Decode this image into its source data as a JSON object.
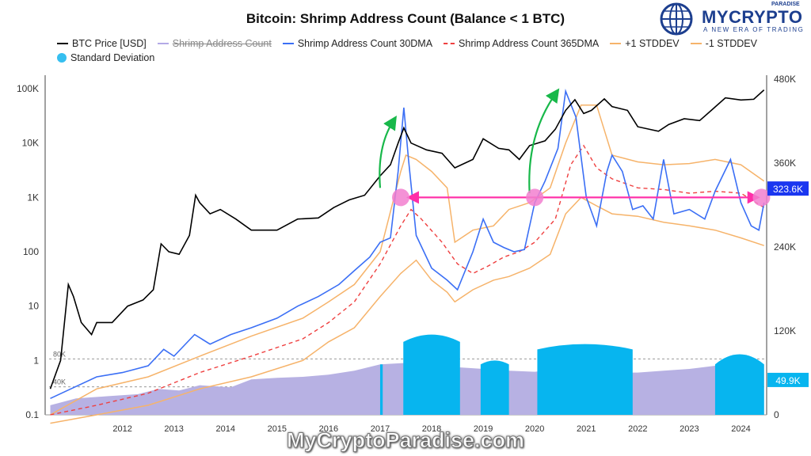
{
  "logo": {
    "brand": "MYCRYPTO",
    "paradise": "PARADISE",
    "tagline": "A NEW ERA OF TRADING"
  },
  "watermark": "MyCryptoParadise.com",
  "colors": {
    "price": "#000000",
    "shrimp_raw": "#b3a9e6",
    "dma30": "#3b6ff5",
    "dma365": "#ef4040",
    "stddev": "#f6b36a",
    "stdev_fill": "#07b5ef",
    "purple_fill": "#b7b1e3",
    "accent": "#ff2fa8",
    "arrow": "#18b84a",
    "highlight_tag": "#1a36f0",
    "value_tag": "#07b5ef"
  },
  "chart_data": {
    "type": "line",
    "title": "Bitcoin: Shrimp Address Count (Balance < 1 BTC)",
    "legend_position": "top-left",
    "legend": [
      {
        "name": "BTC Price [USD]",
        "style": "solid",
        "color": "#000000",
        "struck": false
      },
      {
        "name": "Shrimp Address Count",
        "style": "solid",
        "color": "#b3a9e6",
        "struck": true
      },
      {
        "name": "Shrimp Address Count 30DMA",
        "style": "solid",
        "color": "#3b6ff5",
        "struck": false
      },
      {
        "name": "Shrimp Address Count 365DMA",
        "style": "dashed",
        "color": "#ef4040",
        "struck": false
      },
      {
        "name": "+1 STDDEV",
        "style": "solid",
        "color": "#f6b36a",
        "struck": false
      },
      {
        "name": "-1 STDDEV",
        "style": "solid",
        "color": "#f6b36a",
        "struck": false
      },
      {
        "name": "Standard Deviation",
        "style": "dot",
        "color": "#36bff0",
        "struck": false
      }
    ],
    "x_axis": {
      "range": [
        2011.0,
        2025.0
      ],
      "ticks": [
        "2012",
        "2013",
        "2014",
        "2015",
        "2016",
        "2017",
        "2018",
        "2019",
        "2020",
        "2021",
        "2022",
        "2023",
        "2024"
      ]
    },
    "y_left": {
      "scale": "log",
      "range": [
        0.1,
        150000
      ],
      "ticks": [
        "0.1",
        "1",
        "10",
        "100",
        "1K",
        "10K",
        "100K"
      ]
    },
    "y_right": {
      "scale": "linear",
      "range": [
        0,
        480000
      ],
      "ticks": [
        "0",
        "120K",
        "240K",
        "360K",
        "480K"
      ]
    },
    "y_left_lower": {
      "ticks": [
        "80K",
        "40K"
      ]
    },
    "value_tags": [
      {
        "label": "323.6K",
        "y": 323600
      },
      {
        "label": "49.9K",
        "y": 49900
      }
    ],
    "btc_price": [
      [
        2011.1,
        0.3
      ],
      [
        2011.3,
        1.0
      ],
      [
        2011.45,
        25
      ],
      [
        2011.55,
        15
      ],
      [
        2011.7,
        5
      ],
      [
        2011.9,
        3
      ],
      [
        2012.0,
        5
      ],
      [
        2012.3,
        5
      ],
      [
        2012.6,
        10
      ],
      [
        2012.9,
        13
      ],
      [
        2013.1,
        20
      ],
      [
        2013.25,
        140
      ],
      [
        2013.4,
        100
      ],
      [
        2013.6,
        90
      ],
      [
        2013.8,
        200
      ],
      [
        2013.92,
        1100
      ],
      [
        2014.0,
        800
      ],
      [
        2014.2,
        500
      ],
      [
        2014.4,
        600
      ],
      [
        2014.7,
        400
      ],
      [
        2015.0,
        250
      ],
      [
        2015.5,
        250
      ],
      [
        2015.9,
        400
      ],
      [
        2016.3,
        420
      ],
      [
        2016.6,
        650
      ],
      [
        2016.9,
        900
      ],
      [
        2017.2,
        1100
      ],
      [
        2017.5,
        2500
      ],
      [
        2017.7,
        4000
      ],
      [
        2017.85,
        10000
      ],
      [
        2017.96,
        19000
      ],
      [
        2018.1,
        10000
      ],
      [
        2018.4,
        7500
      ],
      [
        2018.7,
        6500
      ],
      [
        2018.95,
        3500
      ],
      [
        2019.3,
        5000
      ],
      [
        2019.5,
        12000
      ],
      [
        2019.8,
        8000
      ],
      [
        2020.0,
        7500
      ],
      [
        2020.2,
        5000
      ],
      [
        2020.4,
        9000
      ],
      [
        2020.7,
        11000
      ],
      [
        2020.9,
        18000
      ],
      [
        2021.1,
        40000
      ],
      [
        2021.28,
        63000
      ],
      [
        2021.45,
        35000
      ],
      [
        2021.6,
        40000
      ],
      [
        2021.85,
        65000
      ],
      [
        2022.0,
        47000
      ],
      [
        2022.3,
        40000
      ],
      [
        2022.5,
        20000
      ],
      [
        2022.9,
        16500
      ],
      [
        2023.1,
        22000
      ],
      [
        2023.4,
        28000
      ],
      [
        2023.7,
        26000
      ],
      [
        2023.95,
        42000
      ],
      [
        2024.2,
        68000
      ],
      [
        2024.5,
        62000
      ],
      [
        2024.75,
        64000
      ],
      [
        2024.95,
        95000
      ]
    ],
    "shrimp_30dma": [
      [
        2011.1,
        0.2
      ],
      [
        2011.5,
        0.3
      ],
      [
        2012.0,
        0.5
      ],
      [
        2012.5,
        0.6
      ],
      [
        2013.0,
        0.8
      ],
      [
        2013.3,
        1.6
      ],
      [
        2013.5,
        1.2
      ],
      [
        2013.9,
        3
      ],
      [
        2014.2,
        2
      ],
      [
        2014.6,
        3
      ],
      [
        2015.0,
        4
      ],
      [
        2015.5,
        6
      ],
      [
        2015.9,
        10
      ],
      [
        2016.3,
        15
      ],
      [
        2016.7,
        25
      ],
      [
        2017.0,
        45
      ],
      [
        2017.3,
        80
      ],
      [
        2017.5,
        150
      ],
      [
        2017.7,
        180
      ],
      [
        2017.85,
        3000
      ],
      [
        2017.96,
        45000
      ],
      [
        2018.05,
        5000
      ],
      [
        2018.2,
        200
      ],
      [
        2018.5,
        50
      ],
      [
        2018.8,
        30
      ],
      [
        2019.0,
        20
      ],
      [
        2019.3,
        100
      ],
      [
        2019.5,
        400
      ],
      [
        2019.7,
        150
      ],
      [
        2019.9,
        120
      ],
      [
        2020.1,
        100
      ],
      [
        2020.3,
        110
      ],
      [
        2020.5,
        800
      ],
      [
        2020.7,
        2000
      ],
      [
        2020.95,
        8000
      ],
      [
        2021.1,
        90000
      ],
      [
        2021.3,
        30000
      ],
      [
        2021.5,
        1000
      ],
      [
        2021.7,
        300
      ],
      [
        2021.9,
        3000
      ],
      [
        2022.0,
        6000
      ],
      [
        2022.2,
        3000
      ],
      [
        2022.4,
        600
      ],
      [
        2022.6,
        700
      ],
      [
        2022.8,
        400
      ],
      [
        2023.0,
        5000
      ],
      [
        2023.2,
        500
      ],
      [
        2023.5,
        600
      ],
      [
        2023.8,
        400
      ],
      [
        2024.0,
        1300
      ],
      [
        2024.3,
        5000
      ],
      [
        2024.5,
        800
      ],
      [
        2024.7,
        300
      ],
      [
        2024.85,
        250
      ],
      [
        2024.95,
        800
      ]
    ],
    "shrimp_365dma": [
      [
        2011.1,
        0.1
      ],
      [
        2012.0,
        0.15
      ],
      [
        2013.0,
        0.25
      ],
      [
        2014.0,
        0.6
      ],
      [
        2015.0,
        1.2
      ],
      [
        2016.0,
        2.5
      ],
      [
        2016.5,
        5
      ],
      [
        2017.0,
        12
      ],
      [
        2017.5,
        60
      ],
      [
        2017.9,
        300
      ],
      [
        2018.1,
        600
      ],
      [
        2018.3,
        400
      ],
      [
        2018.7,
        150
      ],
      [
        2019.0,
        60
      ],
      [
        2019.3,
        40
      ],
      [
        2019.6,
        55
      ],
      [
        2019.9,
        80
      ],
      [
        2020.2,
        100
      ],
      [
        2020.5,
        150
      ],
      [
        2020.9,
        400
      ],
      [
        2021.2,
        4000
      ],
      [
        2021.45,
        9000
      ],
      [
        2021.7,
        3500
      ],
      [
        2022.0,
        2200
      ],
      [
        2022.5,
        1500
      ],
      [
        2023.0,
        1400
      ],
      [
        2023.5,
        1200
      ],
      [
        2024.0,
        1300
      ],
      [
        2024.5,
        1200
      ],
      [
        2024.95,
        650
      ]
    ],
    "plus_1_stddev": [
      [
        2011.1,
        0.1
      ],
      [
        2012.0,
        0.3
      ],
      [
        2013.0,
        0.5
      ],
      [
        2014.0,
        1.2
      ],
      [
        2015.0,
        2.8
      ],
      [
        2016.0,
        6
      ],
      [
        2016.5,
        12
      ],
      [
        2017.0,
        25
      ],
      [
        2017.5,
        100
      ],
      [
        2017.9,
        3000
      ],
      [
        2018.0,
        6000
      ],
      [
        2018.2,
        5000
      ],
      [
        2018.5,
        3000
      ],
      [
        2018.8,
        1500
      ],
      [
        2018.95,
        150
      ],
      [
        2019.3,
        250
      ],
      [
        2019.7,
        300
      ],
      [
        2020.0,
        600
      ],
      [
        2020.4,
        800
      ],
      [
        2020.8,
        1500
      ],
      [
        2021.1,
        10000
      ],
      [
        2021.4,
        50000
      ],
      [
        2021.7,
        50000
      ],
      [
        2022.0,
        6000
      ],
      [
        2022.5,
        4500
      ],
      [
        2023.0,
        4000
      ],
      [
        2023.5,
        4200
      ],
      [
        2024.0,
        5000
      ],
      [
        2024.5,
        4000
      ],
      [
        2024.95,
        2000
      ]
    ],
    "minus_1_stddev": [
      [
        2011.1,
        0.07
      ],
      [
        2012.0,
        0.1
      ],
      [
        2013.0,
        0.15
      ],
      [
        2014.0,
        0.3
      ],
      [
        2015.0,
        0.5
      ],
      [
        2016.0,
        1.0
      ],
      [
        2016.5,
        2.2
      ],
      [
        2017.0,
        4
      ],
      [
        2017.5,
        15
      ],
      [
        2017.9,
        40
      ],
      [
        2018.2,
        70
      ],
      [
        2018.5,
        30
      ],
      [
        2018.8,
        18
      ],
      [
        2018.95,
        12
      ],
      [
        2019.3,
        20
      ],
      [
        2019.7,
        30
      ],
      [
        2020.0,
        35
      ],
      [
        2020.4,
        50
      ],
      [
        2020.8,
        90
      ],
      [
        2021.1,
        500
      ],
      [
        2021.4,
        1000
      ],
      [
        2021.7,
        700
      ],
      [
        2022.0,
        500
      ],
      [
        2022.5,
        450
      ],
      [
        2023.0,
        350
      ],
      [
        2023.5,
        300
      ],
      [
        2024.0,
        250
      ],
      [
        2024.5,
        180
      ],
      [
        2024.95,
        130
      ]
    ],
    "shrimp_count_area": [
      [
        2011.1,
        0.15
      ],
      [
        2011.6,
        0.2
      ],
      [
        2012.2,
        0.22
      ],
      [
        2012.8,
        0.24
      ],
      [
        2013.2,
        0.3
      ],
      [
        2013.6,
        0.28
      ],
      [
        2014.0,
        0.35
      ],
      [
        2014.6,
        0.32
      ],
      [
        2015.0,
        0.45
      ],
      [
        2015.5,
        0.48
      ],
      [
        2016.0,
        0.5
      ],
      [
        2016.5,
        0.55
      ],
      [
        2017.0,
        0.65
      ],
      [
        2017.5,
        0.85
      ],
      [
        2018.0,
        0.9
      ],
      [
        2018.5,
        0.8
      ],
      [
        2019.0,
        0.75
      ],
      [
        2019.5,
        0.7
      ],
      [
        2020.0,
        0.65
      ],
      [
        2020.5,
        0.62
      ],
      [
        2021.0,
        0.7
      ],
      [
        2021.5,
        0.65
      ],
      [
        2022.0,
        0.6
      ],
      [
        2022.5,
        0.6
      ],
      [
        2023.0,
        0.65
      ],
      [
        2023.5,
        0.7
      ],
      [
        2024.0,
        0.8
      ],
      [
        2024.5,
        0.85
      ],
      [
        2024.95,
        0.85
      ]
    ],
    "standard_deviation_blocks": [
      {
        "start": 2017.5,
        "end": 2017.55,
        "top": 0.85
      },
      {
        "start": 2017.95,
        "end": 2019.05,
        "top": 2.2,
        "peak": 3.0
      },
      {
        "start": 2019.45,
        "end": 2020.0,
        "top": 0.85,
        "peak": 1.0
      },
      {
        "start": 2020.55,
        "end": 2022.4,
        "top": 1.6,
        "peak": 2.0
      },
      {
        "start": 2024.0,
        "end": 2024.95,
        "top": 0.85,
        "peak": 1.3
      }
    ],
    "annotation_circles": [
      {
        "x": 2017.9,
        "y": 1000
      },
      {
        "x": 2020.5,
        "y": 1000
      },
      {
        "x": 2024.9,
        "y": 1000
      }
    ],
    "annotation_line": {
      "x1": 2018.1,
      "x2": 2024.75,
      "y": 1000
    },
    "growth_arrows": [
      {
        "from": [
          2017.5,
          1500
        ],
        "to": [
          2017.75,
          25000
        ]
      },
      {
        "from": [
          2020.4,
          1200
        ],
        "to": [
          2020.9,
          80000
        ]
      }
    ]
  }
}
